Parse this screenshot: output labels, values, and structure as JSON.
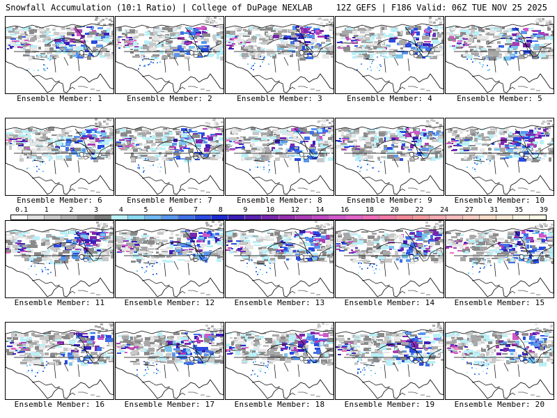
{
  "header": {
    "title": "Snowfall Accumulation (10:1 Ratio) | College of DuPage NEXLAB",
    "run_info": "12Z GEFS | F186 Valid: 06Z TUE NOV 25 2025"
  },
  "panels": [
    {
      "label": "Ensemble Member: 1"
    },
    {
      "label": "Ensemble Member: 2"
    },
    {
      "label": "Ensemble Member: 3"
    },
    {
      "label": "Ensemble Member: 4"
    },
    {
      "label": "Ensemble Member: 5"
    },
    {
      "label": "Ensemble Member: 6"
    },
    {
      "label": "Ensemble Member: 7"
    },
    {
      "label": "Ensemble Member: 8"
    },
    {
      "label": "Ensemble Member: 9"
    },
    {
      "label": "Ensemble Member: 10"
    },
    {
      "label": "Ensemble Member: 11"
    },
    {
      "label": "Ensemble Member: 12"
    },
    {
      "label": "Ensemble Member: 13"
    },
    {
      "label": "Ensemble Member: 14"
    },
    {
      "label": "Ensemble Member: 15"
    },
    {
      "label": "Ensemble Member: 16"
    },
    {
      "label": "Ensemble Member: 17"
    },
    {
      "label": "Ensemble Member: 18"
    },
    {
      "label": "Ensemble Member: 19"
    },
    {
      "label": "Ensemble Member: 20"
    }
  ],
  "legend": {
    "ticks": [
      "0.1",
      "1",
      "2",
      "3",
      "4",
      "5",
      "6",
      "7",
      "8",
      "9",
      "10",
      "12",
      "14",
      "16",
      "18",
      "20",
      "22",
      "24",
      "27",
      "31",
      "35",
      "39"
    ],
    "colors": [
      "#ffffff",
      "#e0e0e0",
      "#c8c8c8",
      "#b0b0b0",
      "#969696",
      "#7c7c7c",
      "#b8f0f8",
      "#8cd8f0",
      "#70b8f0",
      "#5a96ec",
      "#4070e6",
      "#2a4ae0",
      "#1e2cd0",
      "#3a20b8",
      "#5a22b0",
      "#7828ac",
      "#9430ac",
      "#aa3cb4",
      "#c048c0",
      "#d058c8",
      "#e064c8",
      "#ec6cb8",
      "#f078a4",
      "#f08898",
      "#f0989c",
      "#f0aab0",
      "#f4bcbc",
      "#f8ccc0",
      "#fadcc8",
      "#fce8d4",
      "#fff4e4",
      "#fffae8"
    ]
  }
}
